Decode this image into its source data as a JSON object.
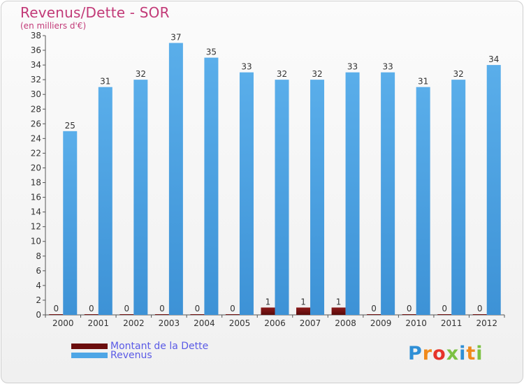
{
  "header": {
    "title": "Revenus/Dette - SOR",
    "subtitle": "(en milliers d'€)"
  },
  "legend": {
    "items": [
      {
        "label": "Montant de la Dette",
        "color": "#6b0d0d"
      },
      {
        "label": "Revenus",
        "color": "#4ea6e6"
      }
    ]
  },
  "logo": {
    "text": "Proxiti"
  },
  "chart_data": {
    "type": "bar",
    "title": "Revenus/Dette - SOR",
    "subtitle": "(en milliers d'€)",
    "categories": [
      "2000",
      "2001",
      "2002",
      "2003",
      "2004",
      "2005",
      "2006",
      "2007",
      "2008",
      "2009",
      "2010",
      "2011",
      "2012"
    ],
    "series": [
      {
        "name": "Montant de la Dette",
        "color": "#6b0d0d",
        "values": [
          0,
          0,
          0,
          0,
          0,
          0,
          1,
          1,
          1,
          0,
          0,
          0,
          0
        ]
      },
      {
        "name": "Revenus",
        "color": "#4ea6e6",
        "values": [
          25,
          31,
          32,
          37,
          35,
          33,
          32,
          32,
          33,
          33,
          31,
          32,
          34
        ]
      }
    ],
    "ylim": [
      0,
      38
    ],
    "yticks": [
      0,
      2,
      4,
      6,
      8,
      10,
      12,
      14,
      16,
      18,
      20,
      22,
      24,
      26,
      28,
      30,
      32,
      34,
      36,
      38
    ],
    "grid": false,
    "legend_position": "bottom-left"
  }
}
